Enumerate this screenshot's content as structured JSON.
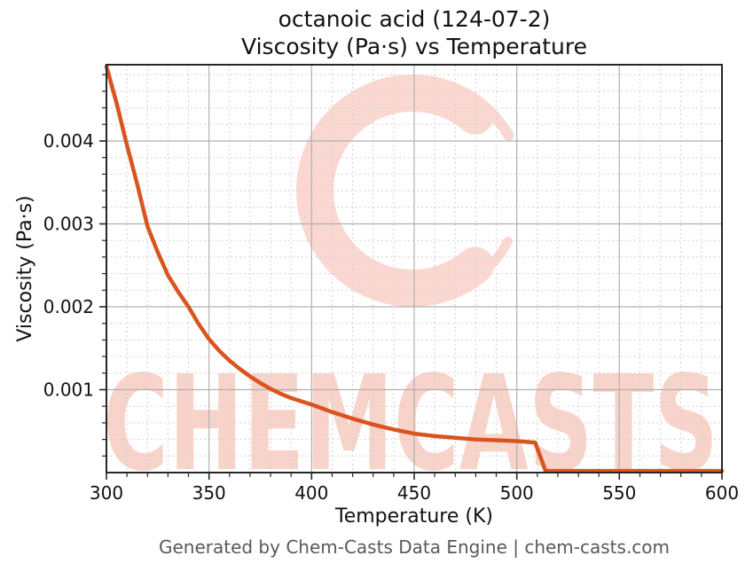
{
  "header": {
    "title_line1": "octanoic acid (124-07-2)",
    "title_line2": "Viscosity (Pa·s) vs Temperature"
  },
  "watermark": {
    "text": "CHEMCASTS",
    "logo": "chemcasts-c-swirl-logo"
  },
  "footer": {
    "text": "Generated by Chem-Casts Data Engine | chem-casts.com"
  },
  "colors": {
    "curve": "#d9541e",
    "major_grid": "#b0b0b0",
    "minor_grid": "#d2d2d2",
    "spine": "#262626",
    "tick_label": "#111111",
    "watermark_text_pink": "#f8d3ca",
    "watermark_logo_pink": "#fad8d1",
    "footer_text": "#555a5c"
  },
  "chart_data": {
    "type": "line",
    "title": "octanoic acid (124-07-2) — Viscosity (Pa·s) vs Temperature",
    "xlabel": "Temperature (K)",
    "ylabel": "Viscosity (Pa·s)",
    "xlim": [
      300,
      600
    ],
    "ylim": [
      0,
      0.00492
    ],
    "x_major_ticks": [
      300,
      350,
      400,
      450,
      500,
      550,
      600
    ],
    "x_tick_labels": [
      "300",
      "350",
      "400",
      "450",
      "500",
      "550",
      "600"
    ],
    "y_major_ticks": [
      0.001,
      0.002,
      0.003,
      0.004
    ],
    "y_tick_labels": [
      "0.001",
      "0.002",
      "0.003",
      "0.004"
    ],
    "x_minor_step": 10,
    "y_minor_step": 0.0002,
    "grid": {
      "major": "solid",
      "minor": "dashed"
    },
    "legend": "none",
    "series": [
      {
        "name": "viscosity",
        "color": "#d9541e",
        "x": [
          300,
          305,
          310,
          315,
          320,
          325,
          330,
          335,
          340,
          345,
          350,
          355,
          360,
          365,
          370,
          375,
          380,
          385,
          390,
          395,
          400,
          410,
          420,
          430,
          440,
          450,
          460,
          470,
          480,
          490,
          500,
          505,
          509,
          514,
          520,
          530,
          540,
          550,
          560,
          570,
          580,
          590,
          600
        ],
        "y": [
          0.0049,
          0.00445,
          0.00395,
          0.00348,
          0.00297,
          0.00266,
          0.00238,
          0.00218,
          0.002,
          0.00179,
          0.00161,
          0.00147,
          0.00135,
          0.00125,
          0.00116,
          0.00108,
          0.00101,
          0.00095,
          0.0009,
          0.00086,
          0.00082,
          0.00073,
          0.00065,
          0.00058,
          0.00052,
          0.00047,
          0.00044,
          0.00042,
          0.0004,
          0.00039,
          0.00038,
          0.00037,
          0.00036,
          2e-05,
          2e-05,
          2e-05,
          2e-05,
          2e-05,
          2e-05,
          2e-05,
          2e-05,
          2e-05,
          2e-05
        ]
      }
    ]
  }
}
